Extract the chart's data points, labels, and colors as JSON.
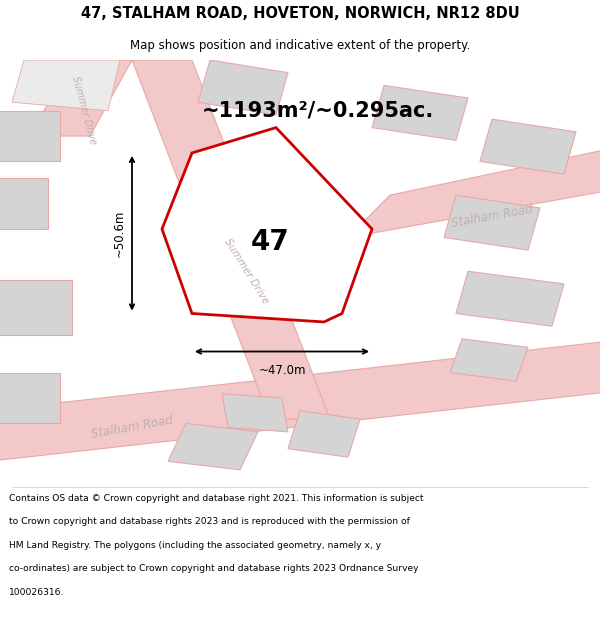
{
  "title_line1": "47, STALHAM ROAD, HOVETON, NORWICH, NR12 8DU",
  "title_line2": "Map shows position and indicative extent of the property.",
  "area_text": "~1193m²/~0.295ac.",
  "number_label": "47",
  "dim_width": "~47.0m",
  "dim_height": "~50.6m",
  "road_label_stalham_lower": "Stalham Road",
  "road_label_stalham_upper": "Stalham Road",
  "road_label_summer_center": "Summer Drive",
  "road_label_summer_upper": "Summer Drive",
  "footer_lines": [
    "Contains OS data © Crown copyright and database right 2021. This information is subject",
    "to Crown copyright and database rights 2023 and is reproduced with the permission of",
    "HM Land Registry. The polygons (including the associated geometry, namely x, y",
    "co-ordinates) are subject to Crown copyright and database rights 2023 Ordnance Survey",
    "100026316."
  ],
  "bg_color": "#ffffff",
  "map_bg_color": "#f0eeee",
  "road_color": "#f2c8c8",
  "road_stroke_color": "#e8a8a8",
  "plot_fill": "#ffffff",
  "plot_stroke": "#cc0000",
  "building_fill": "#d4d4d4",
  "building_stroke": "#e8a8a8",
  "dim_line_color": "#000000",
  "text_color": "#000000",
  "road_text_color": "#c0b0b0"
}
